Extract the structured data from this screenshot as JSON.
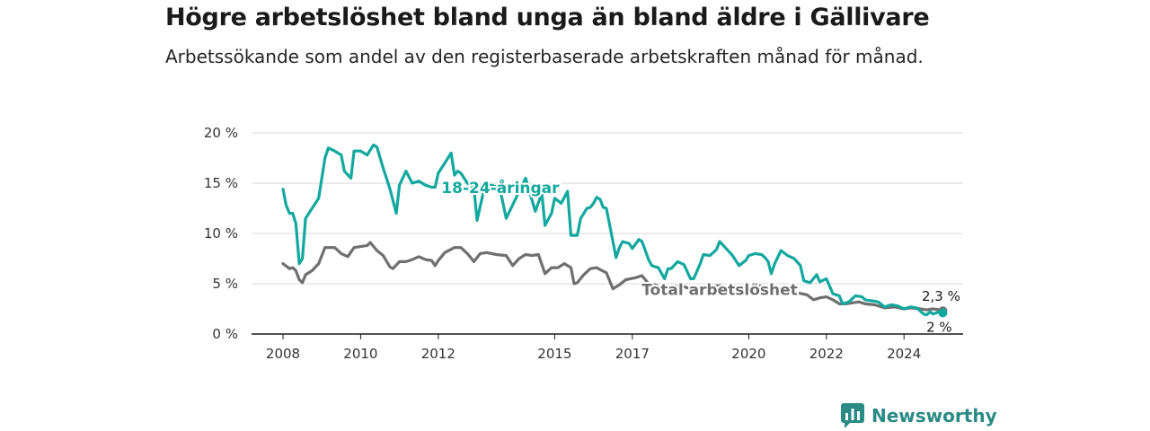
{
  "header": {
    "title": "Högre arbetslöshet bland unga än bland äldre i Gällivare",
    "subtitle": "Arbetssökande som andel av den registerbaserade arbetskraften månad för månad."
  },
  "brand": {
    "name": "Newsworthy",
    "color": "#2a8a84"
  },
  "chart_data": {
    "type": "line",
    "xlim": [
      2007.75,
      2025.5
    ],
    "ylim": [
      0,
      20
    ],
    "x_ticks": [
      2008,
      2010,
      2012,
      2015,
      2017,
      2020,
      2022,
      2024
    ],
    "x_tick_labels": [
      "2008",
      "2010",
      "2012",
      "2015",
      "2017",
      "2020",
      "2022",
      "2024"
    ],
    "y_ticks": [
      0,
      5,
      10,
      15,
      20
    ],
    "y_tick_labels": [
      "0 %",
      "5 %",
      "10 %",
      "15 %",
      "20 %"
    ],
    "grid": "horizontal",
    "series": [
      {
        "name": "18-24-åringar",
        "color": "#13a89e",
        "end_label": "2 %",
        "points": [
          [
            2008.0,
            14.4
          ],
          [
            2008.08,
            12.8
          ],
          [
            2008.17,
            12.0
          ],
          [
            2008.25,
            12.0
          ],
          [
            2008.33,
            11.0
          ],
          [
            2008.42,
            7.0
          ],
          [
            2008.5,
            7.5
          ],
          [
            2008.58,
            11.5
          ],
          [
            2008.75,
            12.5
          ],
          [
            2008.92,
            13.5
          ],
          [
            2009.0,
            15.5
          ],
          [
            2009.08,
            17.5
          ],
          [
            2009.17,
            18.5
          ],
          [
            2009.33,
            18.2
          ],
          [
            2009.5,
            17.8
          ],
          [
            2009.58,
            16.2
          ],
          [
            2009.75,
            15.5
          ],
          [
            2009.83,
            18.2
          ],
          [
            2010.0,
            18.2
          ],
          [
            2010.17,
            17.8
          ],
          [
            2010.33,
            18.8
          ],
          [
            2010.42,
            18.6
          ],
          [
            2010.58,
            16.5
          ],
          [
            2010.75,
            14.5
          ],
          [
            2010.92,
            12.0
          ],
          [
            2011.0,
            14.8
          ],
          [
            2011.17,
            16.2
          ],
          [
            2011.33,
            15.0
          ],
          [
            2011.5,
            15.2
          ],
          [
            2011.67,
            14.8
          ],
          [
            2011.83,
            14.6
          ],
          [
            2011.92,
            14.6
          ],
          [
            2012.0,
            16.0
          ],
          [
            2012.17,
            17.0
          ],
          [
            2012.33,
            18.0
          ],
          [
            2012.42,
            15.8
          ],
          [
            2012.5,
            16.2
          ],
          [
            2012.58,
            16.0
          ],
          [
            2012.75,
            15.0
          ],
          [
            2012.92,
            14.5
          ],
          [
            2013.0,
            11.3
          ],
          [
            2013.17,
            14.2
          ],
          [
            2013.33,
            14.8
          ],
          [
            2013.58,
            14.6
          ],
          [
            2013.75,
            11.5
          ],
          [
            2014.0,
            13.5
          ],
          [
            2014.25,
            15.5
          ],
          [
            2014.5,
            12.2
          ],
          [
            2014.67,
            14.0
          ],
          [
            2014.75,
            10.8
          ],
          [
            2014.92,
            12.0
          ],
          [
            2015.0,
            13.5
          ],
          [
            2015.17,
            13.0
          ],
          [
            2015.33,
            14.2
          ],
          [
            2015.42,
            9.8
          ],
          [
            2015.58,
            9.8
          ],
          [
            2015.67,
            11.5
          ],
          [
            2015.83,
            12.5
          ],
          [
            2015.92,
            12.6
          ],
          [
            2016.0,
            13.0
          ],
          [
            2016.08,
            13.6
          ],
          [
            2016.17,
            13.4
          ],
          [
            2016.25,
            12.6
          ],
          [
            2016.33,
            12.5
          ],
          [
            2016.5,
            9.2
          ],
          [
            2016.58,
            7.6
          ],
          [
            2016.67,
            8.6
          ],
          [
            2016.75,
            9.2
          ],
          [
            2016.92,
            9.0
          ],
          [
            2017.0,
            8.5
          ],
          [
            2017.17,
            9.4
          ],
          [
            2017.25,
            9.2
          ],
          [
            2017.42,
            7.4
          ],
          [
            2017.5,
            6.8
          ],
          [
            2017.67,
            6.6
          ],
          [
            2017.83,
            5.5
          ],
          [
            2017.92,
            6.5
          ],
          [
            2018.0,
            6.5
          ],
          [
            2018.17,
            7.2
          ],
          [
            2018.33,
            6.9
          ],
          [
            2018.5,
            5.5
          ],
          [
            2018.58,
            5.5
          ],
          [
            2018.75,
            7.0
          ],
          [
            2018.83,
            7.9
          ],
          [
            2019.0,
            7.8
          ],
          [
            2019.17,
            8.4
          ],
          [
            2019.25,
            9.2
          ],
          [
            2019.42,
            8.5
          ],
          [
            2019.58,
            7.8
          ],
          [
            2019.75,
            6.8
          ],
          [
            2019.92,
            7.3
          ],
          [
            2020.0,
            7.8
          ],
          [
            2020.17,
            8.0
          ],
          [
            2020.33,
            7.9
          ],
          [
            2020.42,
            7.6
          ],
          [
            2020.5,
            7.2
          ],
          [
            2020.58,
            6.0
          ],
          [
            2020.67,
            7.0
          ],
          [
            2020.83,
            8.3
          ],
          [
            2021.0,
            7.8
          ],
          [
            2021.17,
            7.5
          ],
          [
            2021.33,
            6.8
          ],
          [
            2021.42,
            5.3
          ],
          [
            2021.58,
            5.1
          ],
          [
            2021.75,
            5.9
          ],
          [
            2021.83,
            5.2
          ],
          [
            2022.0,
            5.5
          ],
          [
            2022.17,
            4.0
          ],
          [
            2022.33,
            3.8
          ],
          [
            2022.42,
            3.0
          ],
          [
            2022.58,
            3.2
          ],
          [
            2022.75,
            3.8
          ],
          [
            2022.92,
            3.7
          ],
          [
            2023.0,
            3.4
          ],
          [
            2023.17,
            3.3
          ],
          [
            2023.33,
            3.2
          ],
          [
            2023.5,
            2.7
          ],
          [
            2023.67,
            2.9
          ],
          [
            2023.83,
            2.8
          ],
          [
            2024.0,
            2.5
          ],
          [
            2024.17,
            2.7
          ],
          [
            2024.33,
            2.6
          ],
          [
            2024.5,
            2.0
          ],
          [
            2024.58,
            1.9
          ],
          [
            2024.67,
            2.2
          ],
          [
            2024.75,
            2.0
          ],
          [
            2024.83,
            2.1
          ],
          [
            2024.92,
            2.3
          ],
          [
            2025.0,
            2.1
          ]
        ]
      },
      {
        "name": "Total arbetslöshet",
        "color": "#6f6f6f",
        "end_label": "2,3 %",
        "points": [
          [
            2008.0,
            7.0
          ],
          [
            2008.17,
            6.5
          ],
          [
            2008.25,
            6.6
          ],
          [
            2008.33,
            6.3
          ],
          [
            2008.42,
            5.4
          ],
          [
            2008.5,
            5.1
          ],
          [
            2008.58,
            5.9
          ],
          [
            2008.75,
            6.3
          ],
          [
            2008.92,
            7.0
          ],
          [
            2009.08,
            8.6
          ],
          [
            2009.33,
            8.6
          ],
          [
            2009.5,
            8.0
          ],
          [
            2009.67,
            7.7
          ],
          [
            2009.83,
            8.6
          ],
          [
            2010.0,
            8.7
          ],
          [
            2010.17,
            8.8
          ],
          [
            2010.25,
            9.1
          ],
          [
            2010.42,
            8.3
          ],
          [
            2010.58,
            7.8
          ],
          [
            2010.75,
            6.7
          ],
          [
            2010.83,
            6.5
          ],
          [
            2011.0,
            7.2
          ],
          [
            2011.17,
            7.2
          ],
          [
            2011.33,
            7.4
          ],
          [
            2011.5,
            7.7
          ],
          [
            2011.67,
            7.4
          ],
          [
            2011.83,
            7.3
          ],
          [
            2011.92,
            6.8
          ],
          [
            2012.0,
            7.3
          ],
          [
            2012.17,
            8.1
          ],
          [
            2012.42,
            8.6
          ],
          [
            2012.58,
            8.6
          ],
          [
            2012.75,
            8.0
          ],
          [
            2012.92,
            7.2
          ],
          [
            2013.08,
            8.0
          ],
          [
            2013.25,
            8.1
          ],
          [
            2013.5,
            7.9
          ],
          [
            2013.75,
            7.8
          ],
          [
            2013.92,
            6.8
          ],
          [
            2014.08,
            7.5
          ],
          [
            2014.25,
            7.9
          ],
          [
            2014.42,
            7.8
          ],
          [
            2014.58,
            7.9
          ],
          [
            2014.75,
            6.0
          ],
          [
            2014.92,
            6.6
          ],
          [
            2015.08,
            6.6
          ],
          [
            2015.25,
            7.0
          ],
          [
            2015.42,
            6.6
          ],
          [
            2015.5,
            5.0
          ],
          [
            2015.58,
            5.1
          ],
          [
            2015.75,
            5.9
          ],
          [
            2015.92,
            6.5
          ],
          [
            2016.08,
            6.6
          ],
          [
            2016.17,
            6.4
          ],
          [
            2016.33,
            6.1
          ],
          [
            2016.5,
            4.5
          ],
          [
            2016.67,
            4.9
          ],
          [
            2016.83,
            5.4
          ],
          [
            2017.08,
            5.6
          ],
          [
            2017.25,
            5.8
          ],
          [
            2017.42,
            5.0
          ],
          [
            2017.58,
            4.9
          ],
          [
            2017.75,
            4.6
          ],
          [
            2018.0,
            4.6
          ],
          [
            2018.25,
            4.8
          ],
          [
            2018.5,
            4.5
          ],
          [
            2018.75,
            4.6
          ],
          [
            2019.0,
            4.7
          ],
          [
            2019.25,
            4.8
          ],
          [
            2019.5,
            4.6
          ],
          [
            2019.75,
            4.5
          ],
          [
            2020.0,
            4.6
          ],
          [
            2020.25,
            4.8
          ],
          [
            2020.5,
            4.6
          ],
          [
            2020.75,
            4.4
          ],
          [
            2021.0,
            4.3
          ],
          [
            2021.25,
            4.1
          ],
          [
            2021.5,
            3.9
          ],
          [
            2021.67,
            3.4
          ],
          [
            2021.83,
            3.6
          ],
          [
            2022.0,
            3.7
          ],
          [
            2022.17,
            3.4
          ],
          [
            2022.33,
            3.0
          ],
          [
            2022.5,
            3.0
          ],
          [
            2022.67,
            3.1
          ],
          [
            2022.83,
            3.2
          ],
          [
            2023.0,
            3.0
          ],
          [
            2023.25,
            2.9
          ],
          [
            2023.5,
            2.6
          ],
          [
            2023.75,
            2.7
          ],
          [
            2024.0,
            2.5
          ],
          [
            2024.17,
            2.6
          ],
          [
            2024.42,
            2.5
          ],
          [
            2024.58,
            2.4
          ],
          [
            2024.75,
            2.5
          ],
          [
            2024.92,
            2.4
          ],
          [
            2025.0,
            2.3
          ]
        ]
      }
    ],
    "series_labels": [
      {
        "text": "18-24-åringar",
        "series": 0,
        "at": [
          2013.6,
          14.0
        ]
      },
      {
        "text": "Total arbetslöshet",
        "series": 1,
        "at": [
          2019.25,
          3.9
        ]
      }
    ]
  }
}
